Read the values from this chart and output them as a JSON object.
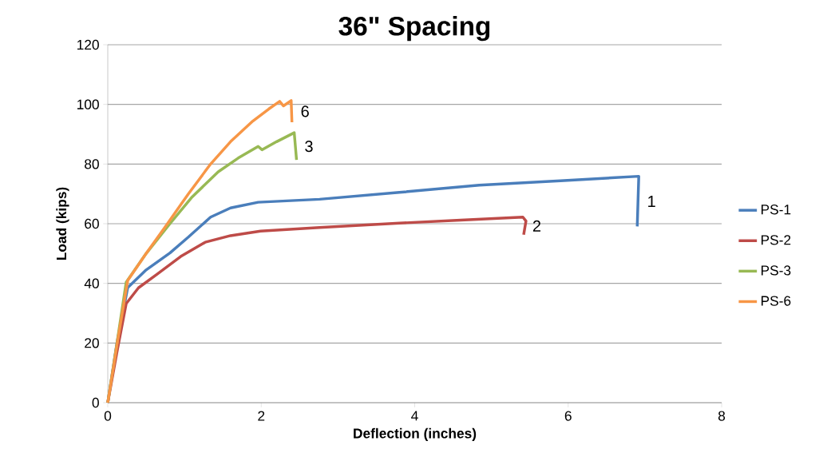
{
  "chart_data": {
    "type": "line",
    "title": "36\" Spacing",
    "xlabel": "Deflection (inches)",
    "ylabel": "Load (kips)",
    "xlim": [
      0,
      8
    ],
    "ylim": [
      0,
      120
    ],
    "xticks": [
      0,
      2,
      4,
      6,
      8
    ],
    "yticks": [
      0,
      20,
      40,
      60,
      80,
      100,
      120
    ],
    "grid": "y",
    "legend": "right",
    "series": [
      {
        "name": "PS-1",
        "color": "#4a7ebb",
        "x": [
          0,
          0.12,
          0.26,
          0.5,
          0.81,
          1.05,
          1.34,
          1.6,
          1.96,
          2.76,
          3.8,
          4.84,
          5.9,
          6.92,
          6.9
        ],
        "values": [
          0,
          20,
          38.6,
          44.5,
          50.2,
          55.5,
          62.2,
          65.3,
          67.2,
          68.2,
          70.5,
          72.9,
          74.4,
          75.9,
          59.1
        ]
      },
      {
        "name": "PS-2",
        "color": "#be4b48",
        "x": [
          0,
          0.12,
          0.24,
          0.4,
          0.64,
          0.95,
          1.27,
          1.6,
          1.99,
          2.76,
          3.8,
          4.6,
          5.41,
          5.45,
          5.42
        ],
        "values": [
          0,
          17,
          33.2,
          38.5,
          43,
          49,
          53.8,
          56,
          57.5,
          58.7,
          60.2,
          61.2,
          62.2,
          60.9,
          56.3
        ]
      },
      {
        "name": "PS-3",
        "color": "#98b954",
        "x": [
          0,
          0.12,
          0.24,
          0.5,
          0.81,
          1.1,
          1.44,
          1.7,
          1.96,
          2.01,
          2.2,
          2.43,
          2.46
        ],
        "values": [
          0,
          20,
          40.4,
          50,
          60,
          69,
          77.4,
          82,
          85.9,
          84.8,
          87.5,
          90.5,
          81.4
        ]
      },
      {
        "name": "PS-6",
        "color": "#f79646",
        "x": [
          0,
          0.13,
          0.26,
          0.5,
          0.75,
          1.05,
          1.34,
          1.6,
          1.89,
          2.1,
          2.24,
          2.29,
          2.39,
          2.4
        ],
        "values": [
          0,
          21,
          41,
          50,
          59,
          70,
          80,
          87.5,
          94.4,
          98.5,
          101,
          99.5,
          101.3,
          94
        ]
      }
    ],
    "annotations": [
      "1",
      "2",
      "3",
      "6"
    ]
  }
}
